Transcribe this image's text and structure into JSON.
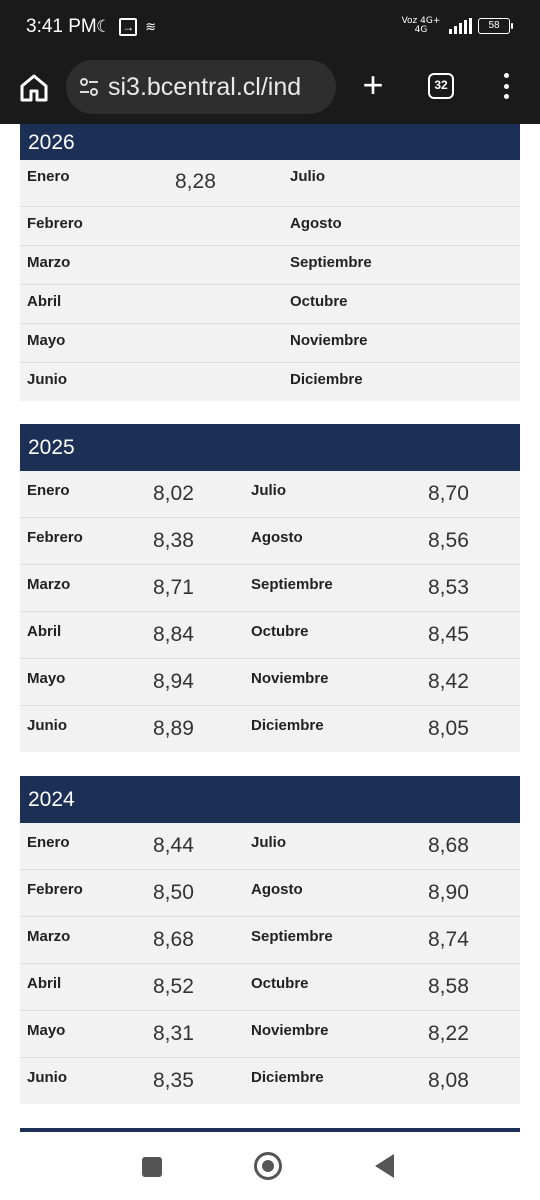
{
  "status_bar": {
    "time": "3:41 PM",
    "net_top": "Voz 4G+",
    "net_bottom": "4G",
    "battery": "58"
  },
  "browser": {
    "url": "si3.bcentral.cl/ind",
    "tab_count": "32",
    "new_tab_label": "+"
  },
  "years": [
    {
      "year": "2026",
      "rows": [
        {
          "m1": "Enero",
          "v1": "8,28",
          "m2": "Julio",
          "v2": ""
        },
        {
          "m1": "Febrero",
          "v1": "",
          "m2": "Agosto",
          "v2": ""
        },
        {
          "m1": "Marzo",
          "v1": "",
          "m2": "Septiembre",
          "v2": ""
        },
        {
          "m1": "Abril",
          "v1": "",
          "m2": "Octubre",
          "v2": ""
        },
        {
          "m1": "Mayo",
          "v1": "",
          "m2": "Noviembre",
          "v2": ""
        },
        {
          "m1": "Junio",
          "v1": "",
          "m2": "Diciembre",
          "v2": ""
        }
      ]
    },
    {
      "year": "2025",
      "rows": [
        {
          "m1": "Enero",
          "v1": "8,02",
          "m2": "Julio",
          "v2": "8,70"
        },
        {
          "m1": "Febrero",
          "v1": "8,38",
          "m2": "Agosto",
          "v2": "8,56"
        },
        {
          "m1": "Marzo",
          "v1": "8,71",
          "m2": "Septiembre",
          "v2": "8,53"
        },
        {
          "m1": "Abril",
          "v1": "8,84",
          "m2": "Octubre",
          "v2": "8,45"
        },
        {
          "m1": "Mayo",
          "v1": "8,94",
          "m2": "Noviembre",
          "v2": "8,42"
        },
        {
          "m1": "Junio",
          "v1": "8,89",
          "m2": "Diciembre",
          "v2": "8,05"
        }
      ]
    },
    {
      "year": "2024",
      "rows": [
        {
          "m1": "Enero",
          "v1": "8,44",
          "m2": "Julio",
          "v2": "8,68"
        },
        {
          "m1": "Febrero",
          "v1": "8,50",
          "m2": "Agosto",
          "v2": "8,90"
        },
        {
          "m1": "Marzo",
          "v1": "8,68",
          "m2": "Septiembre",
          "v2": "8,74"
        },
        {
          "m1": "Abril",
          "v1": "8,52",
          "m2": "Octubre",
          "v2": "8,58"
        },
        {
          "m1": "Mayo",
          "v1": "8,31",
          "m2": "Noviembre",
          "v2": "8,22"
        },
        {
          "m1": "Junio",
          "v1": "8,35",
          "m2": "Diciembre",
          "v2": "8,08"
        }
      ]
    }
  ]
}
